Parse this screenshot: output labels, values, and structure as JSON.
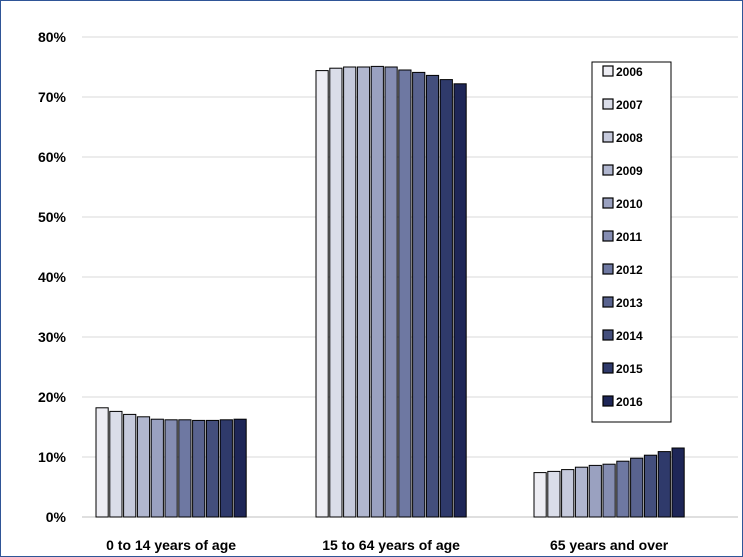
{
  "chart_data": {
    "type": "bar",
    "categories": [
      "0 to 14 years of age",
      "15 to 64 years of age",
      "65 years and over"
    ],
    "series": [
      {
        "name": "2006",
        "color": "#ededf3",
        "values": [
          18.2,
          74.4,
          7.4
        ]
      },
      {
        "name": "2007",
        "color": "#dadde9",
        "values": [
          17.6,
          74.8,
          7.6
        ]
      },
      {
        "name": "2008",
        "color": "#c6cadc",
        "values": [
          17.1,
          75.0,
          7.9
        ]
      },
      {
        "name": "2009",
        "color": "#b0b6cf",
        "values": [
          16.7,
          75.0,
          8.3
        ]
      },
      {
        "name": "2010",
        "color": "#9aa1c0",
        "values": [
          16.3,
          75.1,
          8.6
        ]
      },
      {
        "name": "2011",
        "color": "#858db2",
        "values": [
          16.2,
          75.0,
          8.8
        ]
      },
      {
        "name": "2012",
        "color": "#6e78a2",
        "values": [
          16.2,
          74.5,
          9.3
        ]
      },
      {
        "name": "2013",
        "color": "#59638f",
        "values": [
          16.1,
          74.1,
          9.8
        ]
      },
      {
        "name": "2014",
        "color": "#434e7c",
        "values": [
          16.1,
          73.6,
          10.3
        ]
      },
      {
        "name": "2015",
        "color": "#2f3a6b",
        "values": [
          16.2,
          72.9,
          10.9
        ]
      },
      {
        "name": "2016",
        "color": "#1e2657",
        "values": [
          16.3,
          72.2,
          11.5
        ]
      }
    ],
    "yticks": [
      "0%",
      "10%",
      "20%",
      "30%",
      "40%",
      "50%",
      "60%",
      "70%",
      "80%"
    ],
    "ylim": [
      0,
      80
    ],
    "grid": true,
    "legend_position": "top-right"
  }
}
